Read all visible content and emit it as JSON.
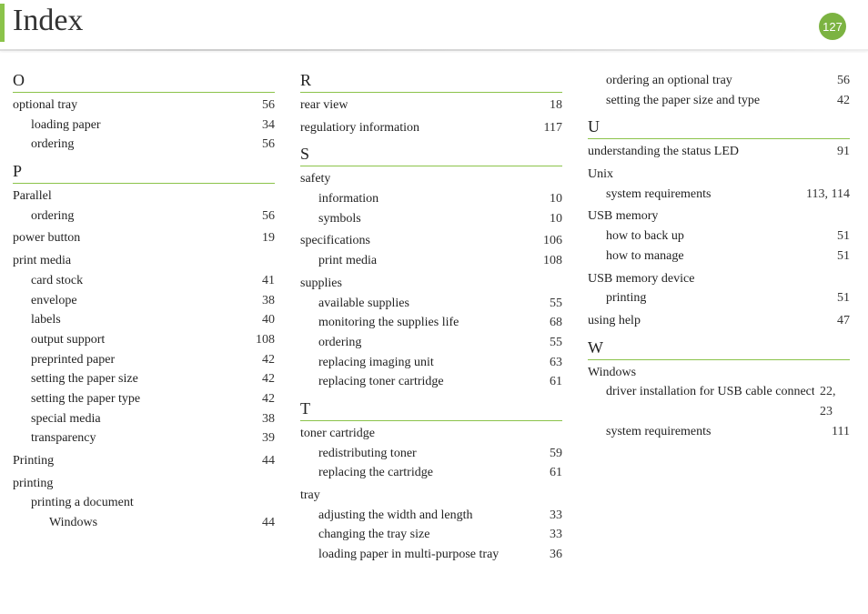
{
  "page_title": "Index",
  "page_number": "127",
  "accent_color": "#8bc34a",
  "badge_color": "#7cb342",
  "text_color": "#222222",
  "background_color": "#ffffff",
  "columns": [
    {
      "blocks": [
        {
          "letter": "O",
          "entries": [
            {
              "level": 0,
              "label": "optional tray",
              "page": "56"
            },
            {
              "level": 1,
              "label": "loading paper",
              "page": "34"
            },
            {
              "level": 1,
              "label": "ordering",
              "page": "56"
            }
          ]
        },
        {
          "letter": "P",
          "entries": [
            {
              "level": 0,
              "label": "Parallel",
              "page": ""
            },
            {
              "level": 1,
              "label": "ordering",
              "page": "56"
            },
            {
              "level": 0,
              "label": "power button",
              "page": "19"
            },
            {
              "level": 0,
              "label": "print media",
              "page": ""
            },
            {
              "level": 1,
              "label": "card stock",
              "page": "41"
            },
            {
              "level": 1,
              "label": "envelope",
              "page": "38"
            },
            {
              "level": 1,
              "label": "labels",
              "page": "40"
            },
            {
              "level": 1,
              "label": "output support",
              "page": "108"
            },
            {
              "level": 1,
              "label": "preprinted paper",
              "page": "42"
            },
            {
              "level": 1,
              "label": "setting the paper size",
              "page": "42"
            },
            {
              "level": 1,
              "label": "setting the paper type",
              "page": "42"
            },
            {
              "level": 1,
              "label": "special media",
              "page": "38"
            },
            {
              "level": 1,
              "label": "transparency",
              "page": "39"
            },
            {
              "level": 0,
              "label": "Printing",
              "page": "44"
            },
            {
              "level": 0,
              "label": "printing",
              "page": ""
            },
            {
              "level": 1,
              "label": "printing a document",
              "page": ""
            },
            {
              "level": 2,
              "label": "Windows",
              "page": "44"
            }
          ]
        }
      ]
    },
    {
      "blocks": [
        {
          "letter": "R",
          "entries": [
            {
              "level": 0,
              "label": "rear view",
              "page": "18"
            },
            {
              "level": 0,
              "label": "regulatiory information",
              "page": "117"
            }
          ]
        },
        {
          "letter": "S",
          "entries": [
            {
              "level": 0,
              "label": "safety",
              "page": ""
            },
            {
              "level": 1,
              "label": "information",
              "page": "10"
            },
            {
              "level": 1,
              "label": "symbols",
              "page": "10"
            },
            {
              "level": 0,
              "label": "specifications",
              "page": "106"
            },
            {
              "level": 1,
              "label": "print media",
              "page": "108"
            },
            {
              "level": 0,
              "label": "supplies",
              "page": ""
            },
            {
              "level": 1,
              "label": "available supplies",
              "page": "55"
            },
            {
              "level": 1,
              "label": "monitoring the supplies life",
              "page": "68"
            },
            {
              "level": 1,
              "label": "ordering",
              "page": "55"
            },
            {
              "level": 1,
              "label": "replacing imaging unit",
              "page": "63"
            },
            {
              "level": 1,
              "label": "replacing toner cartridge",
              "page": "61"
            }
          ]
        },
        {
          "letter": "T",
          "entries": [
            {
              "level": 0,
              "label": "toner cartridge",
              "page": ""
            },
            {
              "level": 1,
              "label": "redistributing toner",
              "page": "59"
            },
            {
              "level": 1,
              "label": "replacing the cartridge",
              "page": "61"
            },
            {
              "level": 0,
              "label": "tray",
              "page": ""
            },
            {
              "level": 1,
              "label": "adjusting the width and length",
              "page": "33"
            },
            {
              "level": 1,
              "label": "changing the tray size",
              "page": "33"
            },
            {
              "level": 1,
              "label": "loading paper in multi-purpose tray",
              "page": "36"
            }
          ]
        }
      ]
    },
    {
      "blocks": [
        {
          "letter": "",
          "entries": [
            {
              "level": 1,
              "label": "ordering an optional tray",
              "page": "56"
            },
            {
              "level": 1,
              "label": "setting the paper size and type",
              "page": "42"
            }
          ]
        },
        {
          "letter": "U",
          "entries": [
            {
              "level": 0,
              "label": "understanding the status LED",
              "page": "91"
            },
            {
              "level": 0,
              "label": "Unix",
              "page": ""
            },
            {
              "level": 1,
              "label": "system requirements",
              "page": "113, 114"
            },
            {
              "level": 0,
              "label": "USB memory",
              "page": ""
            },
            {
              "level": 1,
              "label": "how to back up",
              "page": "51"
            },
            {
              "level": 1,
              "label": "how to manage",
              "page": "51"
            },
            {
              "level": 0,
              "label": "USB memory device",
              "page": ""
            },
            {
              "level": 1,
              "label": "printing",
              "page": "51"
            },
            {
              "level": 0,
              "label": "using help",
              "page": "47"
            }
          ]
        },
        {
          "letter": "W",
          "entries": [
            {
              "level": 0,
              "label": "Windows",
              "page": ""
            },
            {
              "level": 1,
              "label": "driver installation for USB cable connected",
              "page": "22, 23"
            },
            {
              "level": 1,
              "label": "system requirements",
              "page": "111"
            }
          ]
        }
      ]
    }
  ]
}
